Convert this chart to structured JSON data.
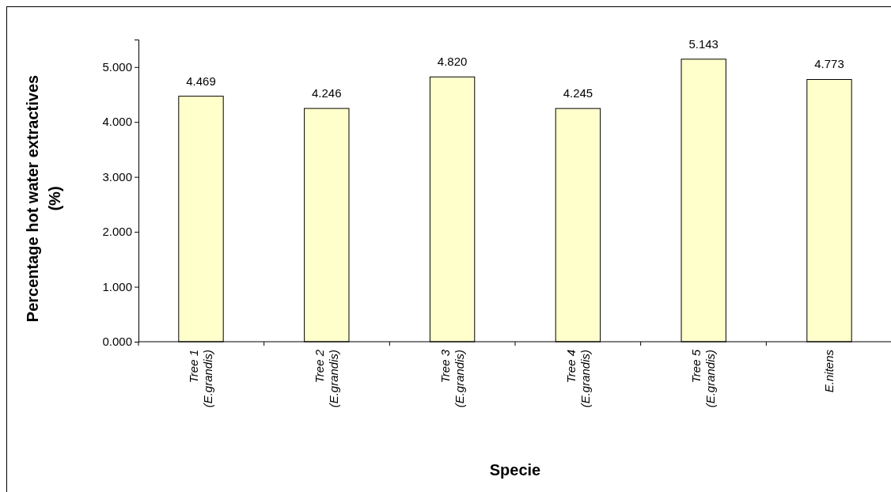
{
  "chart_data": {
    "type": "bar",
    "xlabel": "Specie",
    "ylabel": "Percentage hot water extractives\n(%)",
    "categories": [
      "Tree 1\n(E.grandis)",
      "Tree 2\n(E.grandis)",
      "Tree 3\n(E.grandis)",
      "Tree 4\n(E.grandis)",
      "Tree 5\n(E.grandis)",
      "E.nitens"
    ],
    "values": [
      4.469,
      4.246,
      4.82,
      4.245,
      5.143,
      4.773
    ],
    "value_labels": [
      "4.469",
      "4.246",
      "4.820",
      "4.245",
      "5.143",
      "4.773"
    ],
    "color": "#ffffcc",
    "ylim": [
      0,
      5.5
    ],
    "yticks": [
      {
        "value": 0,
        "label": "0.000"
      },
      {
        "value": 1,
        "label": "1.000"
      },
      {
        "value": 2,
        "label": "2.000"
      },
      {
        "value": 3,
        "label": "3.000"
      },
      {
        "value": 4,
        "label": "4.000"
      },
      {
        "value": 5,
        "label": "5.000"
      }
    ],
    "grid": false
  }
}
